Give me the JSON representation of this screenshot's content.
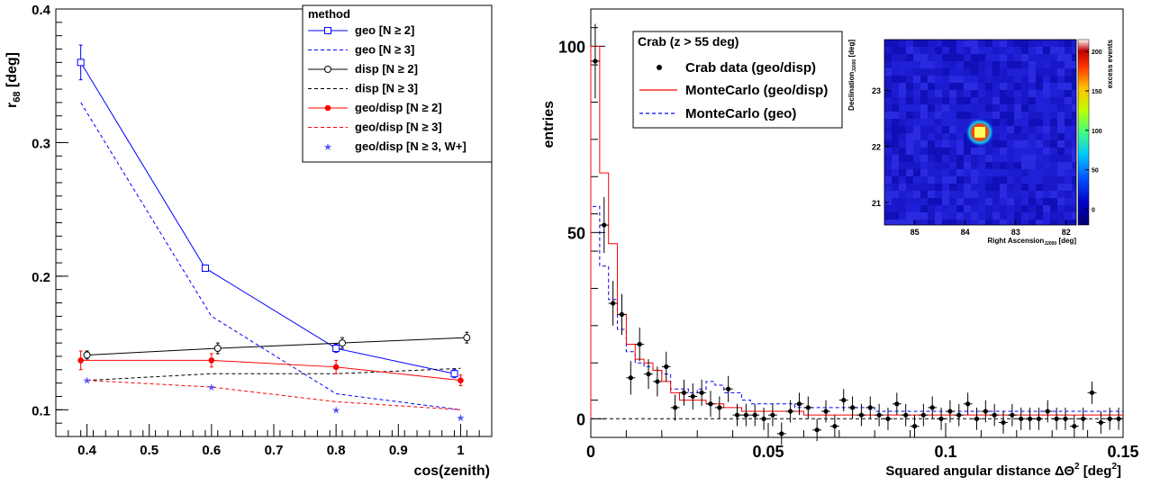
{
  "chart_data": [
    {
      "type": "line",
      "xlabel": "cos(zenith)",
      "ylabel_main": "r",
      "ylabel_sub": "68",
      "ylabel_unit": " [deg]",
      "xlim": [
        0.35,
        1.05
      ],
      "ylim": [
        0.08,
        0.4
      ],
      "xticks": [
        "0.4",
        "0.5",
        "0.6",
        "0.7",
        "0.8",
        "0.9",
        "1"
      ],
      "yticks": [
        "0.1",
        "0.2",
        "0.3",
        "0.4"
      ],
      "legend_title": "method",
      "series": [
        {
          "name": "geo [N ≥ 2]",
          "color": "#0000ff",
          "dash": false,
          "marker": "square",
          "x": [
            0.39,
            0.59,
            0.8,
            0.99
          ],
          "y": [
            0.36,
            0.206,
            0.146,
            0.127
          ],
          "err": [
            0.013,
            0,
            0.003,
            0.003
          ]
        },
        {
          "name": "geo [N ≥ 3]",
          "color": "#0000ff",
          "dash": true,
          "marker": "none",
          "x": [
            0.39,
            0.6,
            0.8,
            1.0
          ],
          "y": [
            0.33,
            0.17,
            0.112,
            0.1
          ],
          "err": [
            0,
            0,
            0,
            0
          ]
        },
        {
          "name": "disp [N ≥ 2]",
          "color": "#000000",
          "dash": false,
          "marker": "circle",
          "x": [
            0.4,
            0.61,
            0.81,
            1.01
          ],
          "y": [
            0.141,
            0.146,
            0.15,
            0.154
          ],
          "err": [
            0.003,
            0.004,
            0.004,
            0.004
          ]
        },
        {
          "name": "disp [N ≥ 3]",
          "color": "#000000",
          "dash": true,
          "marker": "none",
          "x": [
            0.4,
            0.6,
            0.8,
            1.0
          ],
          "y": [
            0.122,
            0.127,
            0.127,
            0.131
          ],
          "err": [
            0,
            0,
            0,
            0
          ]
        },
        {
          "name": "geo/disp [N ≥ 2]",
          "color": "#ff0000",
          "dash": false,
          "marker": "dot",
          "x": [
            0.39,
            0.6,
            0.8,
            1.0
          ],
          "y": [
            0.137,
            0.137,
            0.132,
            0.122
          ],
          "err": [
            0.007,
            0.005,
            0.005,
            0.004
          ]
        },
        {
          "name": "geo/disp [N ≥ 3]",
          "color": "#ff0000",
          "dash": true,
          "marker": "none",
          "x": [
            0.4,
            0.6,
            0.8,
            1.0
          ],
          "y": [
            0.122,
            0.117,
            0.106,
            0.1
          ],
          "err": [
            0,
            0,
            0,
            0
          ]
        },
        {
          "name": "geo/disp [N ≥ 3, W+]",
          "color": "#5555ff",
          "dash": false,
          "marker": "star",
          "noline": true,
          "x": [
            0.4,
            0.6,
            0.8,
            1.0
          ],
          "y": [
            0.122,
            0.117,
            0.1,
            0.094
          ],
          "err": [
            0,
            0,
            0,
            0
          ]
        }
      ]
    },
    {
      "type": "histogram",
      "ylabel": "entries",
      "xlabel_main": "Squared angular distance ΔΘ",
      "xlabel_sup": "2",
      "xlabel_unit_a": " [deg",
      "xlabel_unit_sup": "2",
      "xlabel_unit_b": "]",
      "xlim": [
        0,
        0.15
      ],
      "ylim": [
        -5,
        110
      ],
      "xticks": [
        "0",
        "0.05",
        "0.1",
        "0.15"
      ],
      "yticks": [
        "0",
        "50",
        "100"
      ],
      "legend_title": "Crab (z > 55 deg)",
      "legend": [
        "Crab data (geo/disp)",
        "MonteCarlo (geo/disp)",
        "MonteCarlo (geo)"
      ],
      "bin_width": 0.0025,
      "data_points": {
        "y": [
          96,
          52,
          31,
          28,
          11,
          20,
          12,
          10,
          14,
          3,
          7,
          6,
          7,
          4,
          3,
          8,
          1,
          1,
          1,
          0,
          1,
          -4,
          2,
          4,
          3,
          -3,
          2,
          -2,
          5,
          3,
          1,
          3,
          1,
          0,
          4,
          1,
          -2,
          1,
          3,
          0,
          2,
          1,
          4,
          0,
          2,
          1,
          -1,
          1,
          0,
          0,
          0,
          2,
          0,
          0,
          -2,
          0,
          7,
          -1,
          0,
          0
        ],
        "err": [
          10,
          7.5,
          6,
          5.5,
          4.5,
          4.5,
          4,
          4,
          4,
          3.5,
          3.5,
          3.5,
          3.5,
          3.5,
          3,
          3.5,
          3,
          3,
          3,
          3,
          3,
          3,
          3,
          3,
          3,
          3,
          3,
          3,
          3,
          3,
          3,
          3,
          3,
          3,
          3,
          3,
          3,
          3,
          3,
          3,
          3,
          3,
          3,
          3,
          3,
          3,
          3,
          3,
          3,
          3,
          3,
          3,
          3,
          3,
          3,
          3,
          3,
          3,
          3,
          3
        ]
      },
      "mc_geodisp": [
        100,
        66,
        47,
        28,
        20,
        16,
        15,
        13,
        10,
        7,
        5,
        5,
        5,
        4,
        4,
        3,
        3,
        2,
        2,
        2,
        2,
        2,
        2,
        2,
        1,
        1,
        1,
        1,
        1,
        1,
        1,
        1,
        1,
        1,
        1,
        1,
        1,
        1,
        1,
        1,
        1,
        1,
        1,
        1,
        1,
        1,
        1,
        1,
        1,
        1,
        1,
        1,
        1,
        1,
        1,
        1,
        1,
        1,
        1,
        1
      ],
      "mc_geo": [
        57,
        41,
        32,
        24,
        18,
        15,
        14,
        13,
        12,
        8,
        8,
        7,
        8,
        10,
        9,
        7,
        7,
        5,
        4,
        4,
        4,
        4,
        4,
        3,
        3,
        3,
        3,
        3,
        3,
        3,
        3,
        3,
        2,
        2,
        2,
        2,
        2,
        2,
        2,
        2,
        2,
        2,
        2,
        2,
        2,
        2,
        2,
        2,
        2,
        2,
        2,
        2,
        2,
        2,
        2,
        2,
        2,
        2,
        2,
        2
      ],
      "inset": {
        "type": "heatmap",
        "xlabel_main": "Right Ascension",
        "xlabel_sub": "J2000",
        "xlabel_unit": " [deg]",
        "ylabel_main": "Declination",
        "ylabel_sub": "J2000",
        "ylabel_unit": " [deg]",
        "xticks": [
          "85",
          "84",
          "83",
          "82"
        ],
        "yticks": [
          "23",
          "22",
          "21"
        ],
        "zlabel": "excess events",
        "zticks": [
          "0",
          "50",
          "100",
          "150",
          "200"
        ],
        "zlim": [
          -20,
          215
        ],
        "source_ra": 83.63,
        "source_dec": 22.01,
        "source_peak": 210
      }
    }
  ]
}
